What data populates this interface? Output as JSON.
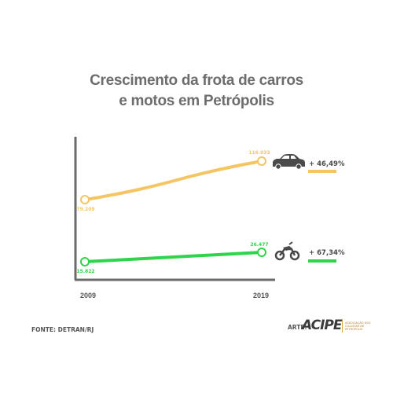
{
  "title_line1": "Crescimento da frota de carros",
  "title_line2": "e motos em Petrópolis",
  "source": "FONTE: DETRAN/RJ",
  "credit_label": "ARTE:",
  "logo": {
    "mark": "ACIPE",
    "subtitle": "ASSOCIAÇÃO DOS CICLISTAS DE PETRÓPOLIS"
  },
  "colors": {
    "cars": "#f4c562",
    "motos": "#2fd44a",
    "axis": "#6b6b6b",
    "title": "#6d6d6d"
  },
  "icons": {
    "cars": "car-icon",
    "motos": "motorcycle-icon"
  },
  "chart_data": {
    "type": "line",
    "categories": [
      "2009",
      "2019"
    ],
    "series": [
      {
        "key": "cars",
        "values": [
          79209,
          116033
        ],
        "value_labels": [
          "79.209",
          "116.033"
        ],
        "growth": "+ 46,49%"
      },
      {
        "key": "motos",
        "values": [
          15822,
          26477
        ],
        "value_labels": [
          "15.822",
          "26.477"
        ],
        "growth": "+ 67,34%"
      }
    ],
    "title": "Crescimento da frota de carros e motos em Petrópolis"
  }
}
